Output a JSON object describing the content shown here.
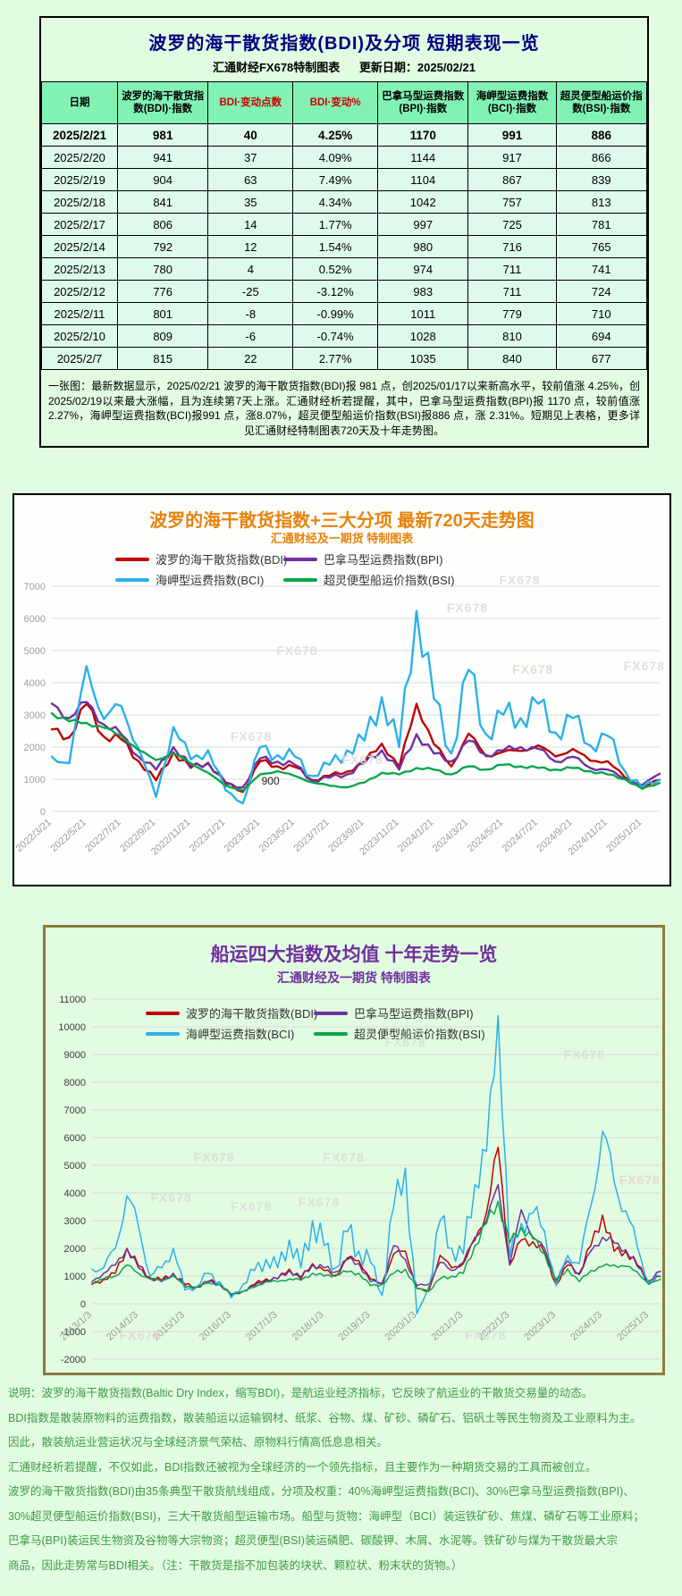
{
  "theme": {
    "page_bg": "#e1fce1",
    "header_bg": "#82f2b4",
    "cell_bg": "#defaec",
    "title_navy": "#000080",
    "accent_red": "#cc0000",
    "footer_green": "#3f9a47",
    "chart2_border": "#8a7c3c",
    "chart1_bg": "#fdfffd"
  },
  "table_section": {
    "title": "波罗的海干散货指数(BDI)及分项 短期表现一览",
    "source_label": "汇通财经FX678特制图表",
    "update_label": "更新日期：2025/02/21",
    "columns": [
      {
        "label": "日期",
        "color": "#000000"
      },
      {
        "label": "波罗的海干散货指数(BDI)·指数",
        "color": "#000000"
      },
      {
        "label": "BDI·变动点数",
        "color": "#cc0000"
      },
      {
        "label": "BDI·变动%",
        "color": "#cc0000"
      },
      {
        "label": "巴拿马型运费指数(BPI)·指数",
        "color": "#000000"
      },
      {
        "label": "海岬型运费指数(BCI)·指数",
        "color": "#000000"
      },
      {
        "label": "超灵便型船运价指数(BSI)·指数",
        "color": "#000000"
      }
    ],
    "rows": [
      [
        "2025/2/21",
        "981",
        "40",
        "4.25%",
        "1170",
        "991",
        "886"
      ],
      [
        "2025/2/20",
        "941",
        "37",
        "4.09%",
        "1144",
        "917",
        "866"
      ],
      [
        "2025/2/19",
        "904",
        "63",
        "7.49%",
        "1104",
        "867",
        "839"
      ],
      [
        "2025/2/18",
        "841",
        "35",
        "4.34%",
        "1042",
        "757",
        "813"
      ],
      [
        "2025/2/17",
        "806",
        "14",
        "1.77%",
        "997",
        "725",
        "781"
      ],
      [
        "2025/2/14",
        "792",
        "12",
        "1.54%",
        "980",
        "716",
        "765"
      ],
      [
        "2025/2/13",
        "780",
        "4",
        "0.52%",
        "974",
        "711",
        "741"
      ],
      [
        "2025/2/12",
        "776",
        "-25",
        "-3.12%",
        "983",
        "711",
        "724"
      ],
      [
        "2025/2/11",
        "801",
        "-8",
        "-0.99%",
        "1011",
        "779",
        "710"
      ],
      [
        "2025/2/10",
        "809",
        "-6",
        "-0.74%",
        "1028",
        "810",
        "694"
      ],
      [
        "2025/2/7",
        "815",
        "22",
        "2.77%",
        "1035",
        "840",
        "677"
      ]
    ],
    "note": "一张图：最新数据显示，2025/02/21 波罗的海干散货指数(BDI)报 981 点，创2025/01/17以来新高水平，较前值涨 4.25%，创2025/02/19以来最大涨幅，且为连续第7天上涨。汇通财经析若提醒，其中，巴拿马型运费指数(BPI)报 1170 点，较前值涨2.27%，海岬型运费指数(BCI)报991 点，涨8.07%，超灵便型船运价指数(BSI)报886 点，涨 2.31%。短期见上表格，更多详见汇通财经特制图表720天及十年走势图。"
  },
  "chart_data": [
    {
      "id": "chart720",
      "type": "line",
      "title": "波罗的海干散货指数+三大分项  最新720天走势图",
      "subtitle": "汇通财经及一期货 特制图表",
      "title_color": "#e8820c",
      "ylim": [
        0,
        7000
      ],
      "ytick_step": 1000,
      "axis_y_color": "#9aa0a0",
      "axis_x_color": "#9a9a9a",
      "grid": true,
      "legend_position": "top-inside",
      "line_width": 2.4,
      "x_tick_every": 2,
      "x_tick_labels": [
        "2022/3/21",
        "2022/5/21",
        "2022/7/21",
        "2022/9/21",
        "2022/11/21",
        "2023/1/21",
        "2023/3/21",
        "2023/5/21",
        "2023/7/21",
        "2023/9/21",
        "2023/11/21",
        "2024/1/21",
        "2024/3/21",
        "2024/5/21",
        "2024/7/21",
        "2024/9/21",
        "2024/11/21",
        "2025/1/21"
      ],
      "draw_order": [
        0,
        1,
        2,
        3
      ],
      "series": [
        {
          "name": "波罗的海干散货指数(BDI)",
          "color": "#c00000",
          "jitter": 0.06,
          "values": [
            2550,
            2300,
            3340,
            2320,
            2240,
            1560,
            965,
            1835,
            1355,
            1515,
            900,
            605,
            1560,
            1400,
            1380,
            975,
            1110,
            1237,
            1540,
            2105,
            1385,
            3346,
            2094,
            1398,
            2419,
            1721,
            1856,
            1881,
            2052,
            1708,
            1941,
            1576,
            1560,
            1058,
            750,
            981
          ]
        },
        {
          "name": "巴拿马型运费指数(BPI)",
          "color": "#7030a0",
          "jitter": 0.06,
          "values": [
            3350,
            2900,
            3400,
            2700,
            2400,
            1700,
            1300,
            2000,
            1400,
            1500,
            850,
            750,
            1650,
            1550,
            1450,
            950,
            1050,
            1150,
            1500,
            1900,
            1300,
            2400,
            1800,
            1550,
            2200,
            1750,
            1900,
            2000,
            1950,
            1550,
            1700,
            1350,
            1300,
            1000,
            820,
            1170
          ]
        },
        {
          "name": "海岬型运费指数(BCI)",
          "color": "#2bb0ea",
          "jitter": 0.14,
          "values": [
            1700,
            1500,
            4520,
            2870,
            3280,
            1960,
            450,
            2625,
            1615,
            1900,
            660,
            250,
            2000,
            1750,
            1700,
            1100,
            1450,
            1900,
            2200,
            3550,
            2000,
            6233,
            3500,
            1800,
            4400,
            2400,
            3000,
            2900,
            3350,
            2450,
            2900,
            2050,
            2350,
            1250,
            750,
            991
          ]
        },
        {
          "name": "超灵便型船运价指数(BSI)",
          "color": "#0aa64c",
          "jitter": 0.03,
          "values": [
            3050,
            2800,
            2750,
            2600,
            2350,
            1900,
            1600,
            1800,
            1500,
            1200,
            800,
            650,
            1150,
            1250,
            1100,
            900,
            800,
            750,
            900,
            1200,
            1150,
            1350,
            1300,
            1150,
            1400,
            1300,
            1450,
            1400,
            1350,
            1300,
            1350,
            1250,
            1150,
            1000,
            700,
            886
          ]
        }
      ],
      "annotations": [
        {
          "text": "900",
          "x": 0.345,
          "value": 830
        }
      ],
      "watermarks": {
        "text": "FX678",
        "color": "#dcdcdc",
        "positions": [
          [
            0.74,
            0.2
          ],
          [
            0.66,
            0.27
          ],
          [
            0.4,
            0.38
          ],
          [
            0.76,
            0.43,
            "#ecd3d3"
          ],
          [
            0.93,
            0.42
          ],
          [
            0.33,
            0.6
          ],
          [
            0.5,
            0.66
          ]
        ]
      }
    },
    {
      "id": "chart10y",
      "type": "line",
      "title": "船运四大指数及均值 十年走势一览",
      "subtitle": "汇通财经及一期货 特制图表",
      "title_color": "#7030a0",
      "ylim": [
        -2000,
        11000
      ],
      "ytick_step": 1000,
      "axis_y_color": "#3c3c3c",
      "axis_x_color": "#9a9a9a",
      "grid": true,
      "legend_position": "top-inside",
      "line_width": 1.5,
      "x_tick_every": 4,
      "x_tick_labels": [
        "2013/1/3",
        "2014/1/3",
        "2015/1/3",
        "2016/1/3",
        "2017/1/3",
        "2018/1/3",
        "2019/1/3",
        "2020/1/3",
        "2021/1/3",
        "2022/1/3",
        "2023/1/3",
        "2024/1/3",
        "2025/1/3"
      ],
      "draw_order": [
        0,
        1,
        2,
        3
      ],
      "series": [
        {
          "name": "波罗的海干散货指数(BDI)",
          "color": "#c00000",
          "jitter": 0.09,
          "values": [
            700,
            880,
            1100,
            2000,
            1370,
            950,
            850,
            1100,
            700,
            600,
            800,
            790,
            310,
            450,
            700,
            900,
            900,
            1250,
            900,
            1450,
            1200,
            1000,
            1650,
            1550,
            900,
            700,
            1800,
            1900,
            560,
            450,
            1750,
            1300,
            1450,
            2300,
            3300,
            5650,
            1400,
            2300,
            2240,
            1835,
            680,
            1400,
            1110,
            2105,
            3200,
            1900,
            1900,
            1400,
            790,
            981
          ]
        },
        {
          "name": "巴拿马型运费指数(BPI)",
          "color": "#7030a0",
          "jitter": 0.08,
          "values": [
            800,
            1100,
            1400,
            2000,
            1300,
            900,
            800,
            1100,
            600,
            600,
            800,
            700,
            300,
            450,
            650,
            850,
            900,
            1200,
            950,
            1400,
            1300,
            1150,
            1600,
            1450,
            800,
            750,
            2100,
            1600,
            650,
            700,
            1500,
            1200,
            1500,
            2400,
            3000,
            4300,
            1400,
            3400,
            2400,
            2000,
            850,
            1550,
            1050,
            1900,
            2400,
            2200,
            1950,
            1350,
            820,
            1170
          ]
        },
        {
          "name": "海岬型运费指数(BCI)",
          "color": "#2bb0ea",
          "jitter": 0.22,
          "values": [
            1250,
            1300,
            2000,
            3900,
            2800,
            1000,
            1300,
            2000,
            500,
            600,
            1100,
            800,
            220,
            700,
            1200,
            1600,
            1300,
            2300,
            1300,
            3000,
            2100,
            1300,
            2600,
            1900,
            1500,
            300,
            3500,
            4900,
            -350,
            600,
            3000,
            2000,
            1800,
            4300,
            5500,
            10400,
            1700,
            2900,
            3280,
            2625,
            660,
            1750,
            1450,
            3550,
            6233,
            4400,
            3350,
            2050,
            750,
            991
          ]
        },
        {
          "name": "超灵便型船运价指数(BSI)",
          "color": "#0aa64c",
          "jitter": 0.07,
          "values": [
            750,
            900,
            1000,
            1400,
            1100,
            900,
            850,
            1000,
            650,
            600,
            750,
            700,
            350,
            450,
            600,
            800,
            800,
            900,
            850,
            1100,
            1000,
            1050,
            1150,
            1100,
            650,
            700,
            1100,
            1250,
            550,
            450,
            900,
            1000,
            1100,
            2100,
            2900,
            3700,
            2200,
            2750,
            2350,
            1800,
            800,
            1250,
            800,
            1200,
            1350,
            1400,
            1350,
            1150,
            700,
            886
          ]
        }
      ],
      "annotations": [],
      "watermarks": {
        "text": "FX678",
        "color": "#dcdcdc",
        "positions": [
          [
            0.55,
            0.24
          ],
          [
            0.84,
            0.27
          ],
          [
            0.24,
            0.5
          ],
          [
            0.45,
            0.5
          ],
          [
            0.93,
            0.55,
            "#ecd3d3"
          ],
          [
            0.17,
            0.59
          ],
          [
            0.3,
            0.61
          ],
          [
            0.41,
            0.6
          ],
          [
            0.12,
            0.9,
            "#ecd3d3"
          ],
          [
            0.68,
            0.9
          ]
        ]
      }
    }
  ],
  "footer_notes": {
    "color": "#3f9a47",
    "lines": [
      "说明：波罗的海干散货指数(Baltic Dry Index，缩写BDI)，是航运业经济指标，它反映了航运业的干散货交易量的动态。",
      "BDI指数是散装原物料的运费指数，散装船运以运输钢材、纸浆、谷物、煤、矿砂、磷矿石、铝矾土等民生物资及工业原料为主。",
      "因此，散装航运业营运状况与全球经济景气荣枯、原物料行情高低息息相关。",
      "汇通财经析若提醒，不仅如此，BDI指数还被视为全球经济的一个领先指标，且主要作为一种期货交易的工具而被创立。",
      "波罗的海干散货指数(BDI)由35条典型干散货航线组成，分项及权重：40%海岬型运费指数(BCI)、30%巴拿马型运费指数(BPI)、",
      "30%超灵便型船运价指数(BSI)，三大干散货船型运输市场。船型与货物：海岬型（BCI）装运铁矿砂、焦煤、磷矿石等工业原料；",
      "巴拿马(BPI)装运民生物资及谷物等大宗物资；超灵便型(BSI)装运磷肥、碳酸钾、木屑、水泥等。铁矿砂与煤为干散货最大宗",
      "商品，因此走势常与BDI相关。（注：干散货是指不加包装的块状、颗粒状、粉末状的货物。）"
    ]
  }
}
